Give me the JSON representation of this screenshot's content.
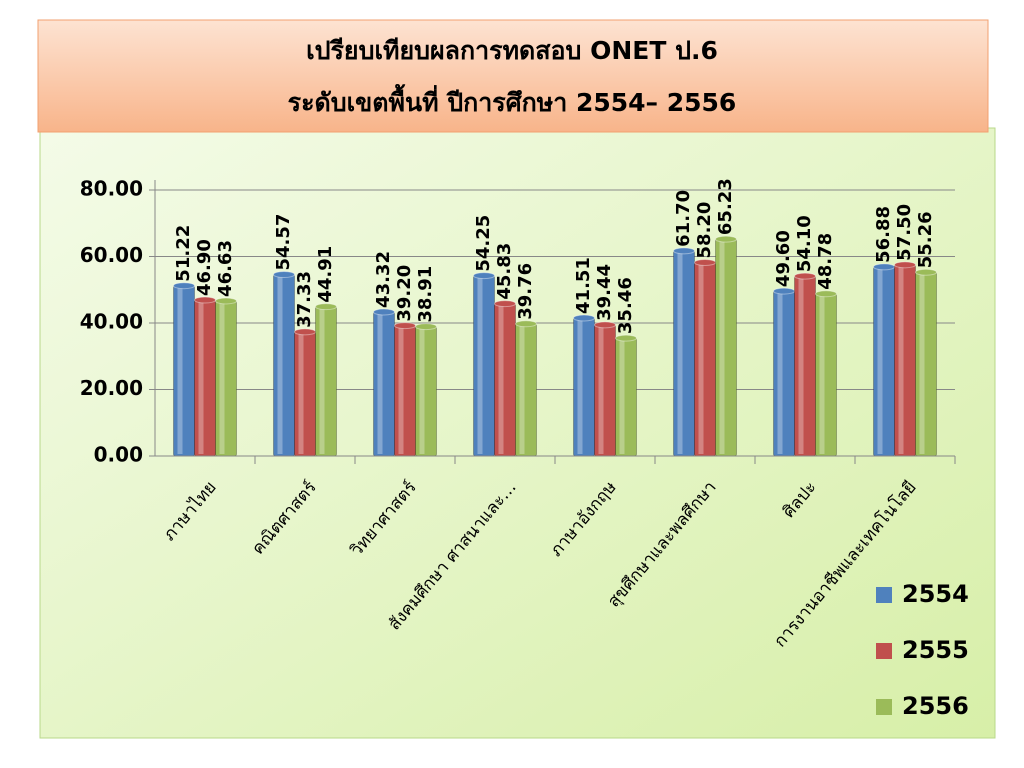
{
  "chart_data": {
    "type": "bar",
    "title": "เปรียบเทียบผลการทดสอบ ONET ป.6",
    "subtitle": "ระดับเขตพื้นที่ ปีการศึกษา 2554– 2556",
    "categories": [
      "ภาษาไทย",
      "คณิตศาสตร์",
      "วิทยาศาสตร์",
      "สังคมศึกษา ศาสนาและ…",
      "ภาษาอังกฤษ",
      "สุขศึกษาและพลศึกษา",
      "ศิลปะ",
      "การงานอาชีพและเทคโนโลยี"
    ],
    "series": [
      {
        "name": "2554",
        "color": "#4f81bd",
        "values": [
          51.22,
          54.57,
          43.32,
          54.25,
          41.51,
          61.7,
          49.6,
          56.88
        ],
        "value_labels": [
          "51.22",
          "54.57",
          "43.32",
          "54.25",
          "41.51",
          "61.70",
          "49.60",
          "56.88"
        ]
      },
      {
        "name": "2555",
        "color": "#c0504d",
        "values": [
          46.9,
          37.33,
          39.2,
          45.83,
          39.44,
          58.2,
          54.1,
          57.5
        ],
        "value_labels": [
          "46.90",
          "37.33",
          "39.20",
          "45.83",
          "39.44",
          "58.20",
          "54.10",
          "57.50"
        ]
      },
      {
        "name": "2556",
        "color": "#9bbb59",
        "values": [
          46.63,
          44.91,
          38.91,
          39.76,
          35.46,
          65.23,
          48.78,
          55.26
        ],
        "value_labels": [
          "46.63",
          "44.91",
          "38.91",
          "39.76",
          "35.46",
          "65.23",
          "48.78",
          "55.26"
        ]
      }
    ],
    "ylim": [
      0,
      80
    ],
    "yticks": [
      {
        "value": 0,
        "label": "0.00"
      },
      {
        "value": 20,
        "label": "20.00"
      },
      {
        "value": 40,
        "label": "40.00"
      },
      {
        "value": 60,
        "label": "60.00"
      },
      {
        "value": 80,
        "label": "80.00"
      }
    ],
    "grid": true
  }
}
